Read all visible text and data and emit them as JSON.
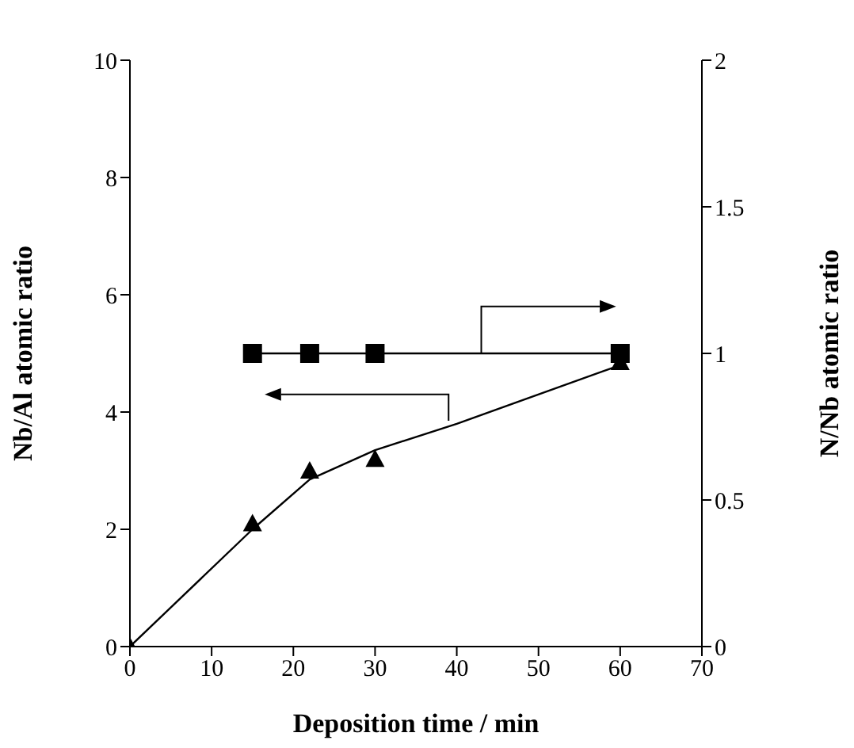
{
  "chart_data": {
    "type": "line",
    "xlabel": "Deposition time / min",
    "ylabel": "Nb/Al atomic ratio",
    "y2label": "N/Nb atomic ratio",
    "series": [
      {
        "type": "scatter",
        "x": [
          0,
          15,
          22,
          30,
          60
        ],
        "values": [
          0,
          2.1,
          3.0,
          3.2,
          4.85
        ],
        "color": "#000000",
        "marker": "triangle"
      },
      {
        "x": [
          0,
          15,
          22,
          30,
          40,
          60
        ],
        "values": [
          0,
          2.0,
          2.85,
          3.35,
          3.8,
          4.8
        ],
        "color": "#000000",
        "marker": "none"
      },
      {
        "axis": "y2",
        "x": [
          15,
          22,
          30,
          60
        ],
        "values": [
          1,
          1,
          1,
          1
        ],
        "color": "#000000",
        "marker": "square"
      }
    ],
    "xlim": [
      0,
      70
    ],
    "xticks": [
      0,
      10,
      20,
      30,
      40,
      50,
      60,
      70
    ],
    "ylim": [
      0,
      10
    ],
    "yticks": [
      0,
      2,
      4,
      6,
      8,
      10
    ],
    "y2lim": [
      0,
      2
    ],
    "y2ticks": [
      0,
      0.5,
      1,
      1.5,
      2
    ],
    "grid": false
  }
}
